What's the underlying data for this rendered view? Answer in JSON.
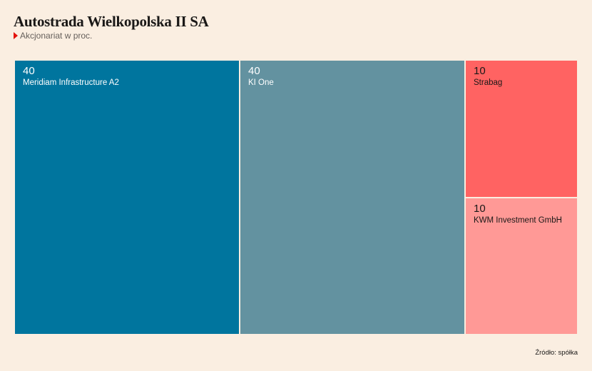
{
  "title": "Autostrada Wielkopolska II SA",
  "subtitle": "Akcjonariat w proc.",
  "source": "Źródło: spółka",
  "chart_data": {
    "type": "treemap",
    "title": "Autostrada Wielkopolska II SA",
    "subtitle": "Akcjonariat w proc.",
    "unit": "%",
    "items": [
      {
        "name": "Meridiam Infrastructure A2",
        "value": 40,
        "value_label": "40",
        "color": "#00759E",
        "text_color": "#FFFFFF"
      },
      {
        "name": "KI One",
        "value": 40,
        "value_label": "40",
        "color": "#6392A0",
        "text_color": "#FFFFFF"
      },
      {
        "name": "Strabag",
        "value": 10,
        "value_label": "10",
        "color": "#FF6362",
        "text_color": "#1A1817"
      },
      {
        "name": "KWM Investment GmbH",
        "value": 10,
        "value_label": "10",
        "color": "#FF9996",
        "text_color": "#1A1817"
      }
    ]
  }
}
